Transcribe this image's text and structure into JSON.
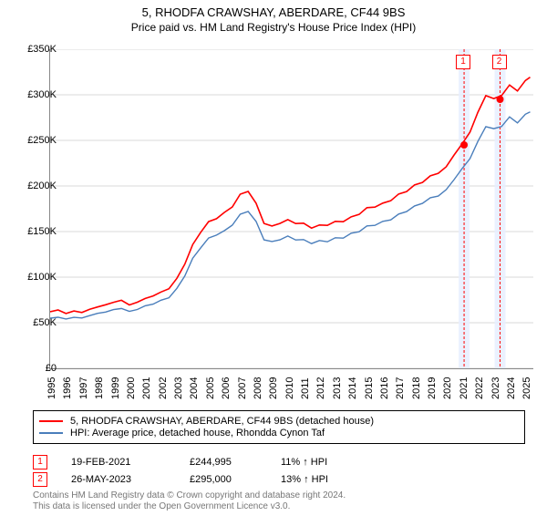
{
  "title": "5, RHODFA CRAWSHAY, ABERDARE, CF44 9BS",
  "subtitle": "Price paid vs. HM Land Registry's House Price Index (HPI)",
  "chart": {
    "type": "line",
    "background_color": "#ffffff",
    "grid_color": "#d9d9d9",
    "axis_color": "#888888",
    "x_range": [
      1995,
      2025.5
    ],
    "y_range": [
      0,
      350000
    ],
    "y_ticks": [
      0,
      50000,
      100000,
      150000,
      200000,
      250000,
      300000,
      350000
    ],
    "y_tick_labels": [
      "£0",
      "£50K",
      "£100K",
      "£150K",
      "£200K",
      "£250K",
      "£300K",
      "£350K"
    ],
    "x_ticks": [
      1995,
      1996,
      1997,
      1998,
      1999,
      2000,
      2001,
      2002,
      2003,
      2004,
      2005,
      2006,
      2007,
      2008,
      2009,
      2010,
      2011,
      2012,
      2013,
      2014,
      2015,
      2016,
      2017,
      2018,
      2019,
      2020,
      2021,
      2022,
      2023,
      2024,
      2025
    ],
    "series": [
      {
        "name": "property",
        "label": "5, RHODFA CRAWSHAY, ABERDARE, CF44 9BS (detached house)",
        "color": "#ff0000",
        "width": 1.6,
        "data": [
          [
            1995,
            62000
          ],
          [
            1995.5,
            64000
          ],
          [
            1996,
            60000
          ],
          [
            1996.5,
            63000
          ],
          [
            1997,
            61000
          ],
          [
            1997.5,
            65000
          ],
          [
            1998,
            67000
          ],
          [
            1998.5,
            70000
          ],
          [
            1999,
            72000
          ],
          [
            1999.5,
            75000
          ],
          [
            2000,
            69000
          ],
          [
            2000.5,
            73000
          ],
          [
            2001,
            76000
          ],
          [
            2001.5,
            80000
          ],
          [
            2002,
            83000
          ],
          [
            2002.5,
            88000
          ],
          [
            2003,
            98000
          ],
          [
            2003.5,
            115000
          ],
          [
            2004,
            135000
          ],
          [
            2004.5,
            150000
          ],
          [
            2005,
            160000
          ],
          [
            2005.5,
            165000
          ],
          [
            2006,
            170000
          ],
          [
            2006.5,
            178000
          ],
          [
            2007,
            190000
          ],
          [
            2007.5,
            195000
          ],
          [
            2008,
            180000
          ],
          [
            2008.5,
            160000
          ],
          [
            2009,
            155000
          ],
          [
            2009.5,
            160000
          ],
          [
            2010,
            162000
          ],
          [
            2010.5,
            160000
          ],
          [
            2011,
            158000
          ],
          [
            2011.5,
            155000
          ],
          [
            2012,
            156000
          ],
          [
            2012.5,
            158000
          ],
          [
            2013,
            160000
          ],
          [
            2013.5,
            162000
          ],
          [
            2014,
            165000
          ],
          [
            2014.5,
            170000
          ],
          [
            2015,
            175000
          ],
          [
            2015.5,
            178000
          ],
          [
            2016,
            180000
          ],
          [
            2016.5,
            185000
          ],
          [
            2017,
            190000
          ],
          [
            2017.5,
            195000
          ],
          [
            2018,
            200000
          ],
          [
            2018.5,
            205000
          ],
          [
            2019,
            210000
          ],
          [
            2019.5,
            215000
          ],
          [
            2020,
            220000
          ],
          [
            2020.5,
            235000
          ],
          [
            2021,
            245000
          ],
          [
            2021.5,
            260000
          ],
          [
            2022,
            280000
          ],
          [
            2022.5,
            300000
          ],
          [
            2023,
            295000
          ],
          [
            2023.5,
            300000
          ],
          [
            2024,
            310000
          ],
          [
            2024.5,
            305000
          ],
          [
            2025,
            315000
          ],
          [
            2025.3,
            320000
          ]
        ]
      },
      {
        "name": "hpi",
        "label": "HPI: Average price, detached house, Rhondda Cynon Taf",
        "color": "#4a7ebb",
        "width": 1.4,
        "data": [
          [
            1995,
            55000
          ],
          [
            1995.5,
            56000
          ],
          [
            1996,
            54000
          ],
          [
            1996.5,
            56000
          ],
          [
            1997,
            55000
          ],
          [
            1997.5,
            58000
          ],
          [
            1998,
            60000
          ],
          [
            1998.5,
            62000
          ],
          [
            1999,
            64000
          ],
          [
            1999.5,
            66000
          ],
          [
            2000,
            62000
          ],
          [
            2000.5,
            65000
          ],
          [
            2001,
            68000
          ],
          [
            2001.5,
            71000
          ],
          [
            2002,
            74000
          ],
          [
            2002.5,
            78000
          ],
          [
            2003,
            87000
          ],
          [
            2003.5,
            102000
          ],
          [
            2004,
            120000
          ],
          [
            2004.5,
            133000
          ],
          [
            2005,
            142000
          ],
          [
            2005.5,
            147000
          ],
          [
            2006,
            150000
          ],
          [
            2006.5,
            158000
          ],
          [
            2007,
            168000
          ],
          [
            2007.5,
            173000
          ],
          [
            2008,
            160000
          ],
          [
            2008.5,
            142000
          ],
          [
            2009,
            138000
          ],
          [
            2009.5,
            142000
          ],
          [
            2010,
            144000
          ],
          [
            2010.5,
            142000
          ],
          [
            2011,
            140000
          ],
          [
            2011.5,
            138000
          ],
          [
            2012,
            139000
          ],
          [
            2012.5,
            140000
          ],
          [
            2013,
            142000
          ],
          [
            2013.5,
            144000
          ],
          [
            2014,
            147000
          ],
          [
            2014.5,
            151000
          ],
          [
            2015,
            155000
          ],
          [
            2015.5,
            158000
          ],
          [
            2016,
            160000
          ],
          [
            2016.5,
            164000
          ],
          [
            2017,
            168000
          ],
          [
            2017.5,
            173000
          ],
          [
            2018,
            177000
          ],
          [
            2018.5,
            182000
          ],
          [
            2019,
            186000
          ],
          [
            2019.5,
            190000
          ],
          [
            2020,
            195000
          ],
          [
            2020.5,
            208000
          ],
          [
            2021,
            218000
          ],
          [
            2021.5,
            231000
          ],
          [
            2022,
            248000
          ],
          [
            2022.5,
            266000
          ],
          [
            2023,
            262000
          ],
          [
            2023.5,
            266000
          ],
          [
            2024,
            275000
          ],
          [
            2024.5,
            270000
          ],
          [
            2025,
            278000
          ],
          [
            2025.3,
            282000
          ]
        ]
      }
    ],
    "markers": [
      {
        "idx": "1",
        "x": 2021.13,
        "y": 244995,
        "color": "#ff0000",
        "band_color": "#e8efff"
      },
      {
        "idx": "2",
        "x": 2023.4,
        "y": 295000,
        "color": "#ff0000",
        "band_color": "#e8efff"
      }
    ]
  },
  "sales": [
    {
      "idx": "1",
      "date": "19-FEB-2021",
      "price": "£244,995",
      "diff": "11% ↑ HPI"
    },
    {
      "idx": "2",
      "date": "26-MAY-2023",
      "price": "£295,000",
      "diff": "13% ↑ HPI"
    }
  ],
  "footer_line1": "Contains HM Land Registry data © Crown copyright and database right 2024.",
  "footer_line2": "This data is licensed under the Open Government Licence v3.0."
}
